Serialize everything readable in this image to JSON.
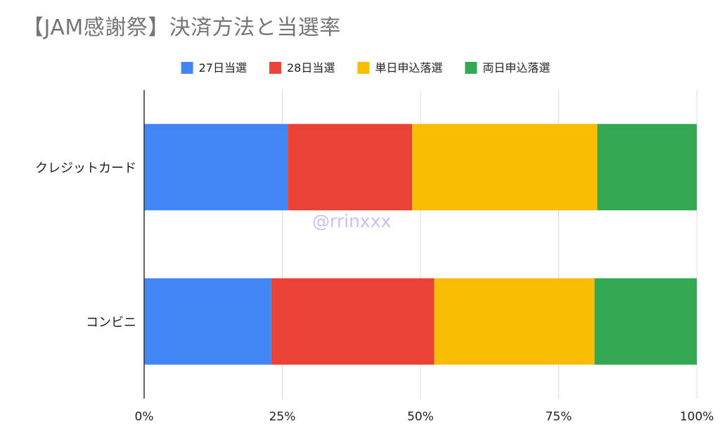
{
  "chart_data": {
    "type": "bar",
    "orientation": "horizontal",
    "stacked": "percent",
    "title": "【JAM感謝祭】決済方法と当選率",
    "categories": [
      "クレジットカード",
      "コンビニ"
    ],
    "series": [
      {
        "name": "27日当選",
        "color": "#4285F4",
        "values": [
          26,
          23
        ]
      },
      {
        "name": "28日当選",
        "color": "#EA4335",
        "values": [
          22.5,
          29.5
        ]
      },
      {
        "name": "単日申込落選",
        "color": "#FBBC04",
        "values": [
          33.5,
          29
        ]
      },
      {
        "name": "両日申込落選",
        "color": "#34A853",
        "values": [
          18,
          18.5
        ]
      }
    ],
    "xlim": [
      0,
      100
    ],
    "x_ticks": [
      "0%",
      "25%",
      "50%",
      "75%",
      "100%"
    ],
    "grid": true,
    "legend_position": "top",
    "watermark": "@rrinxxx"
  }
}
